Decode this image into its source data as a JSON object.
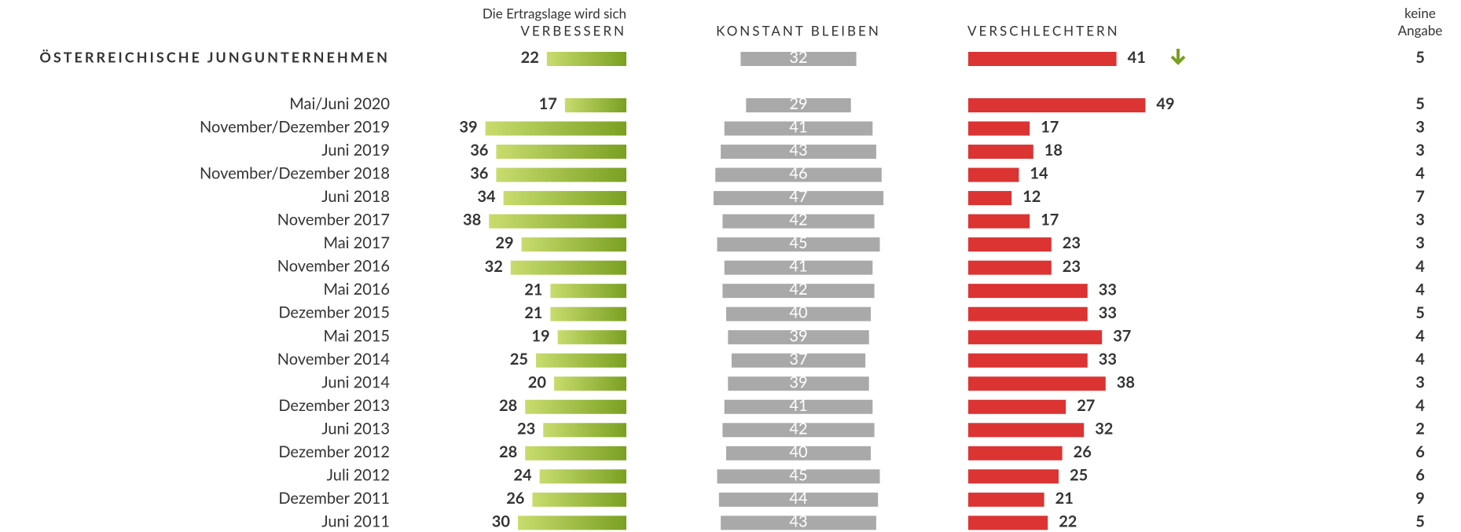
{
  "chart_data": {
    "type": "diverging_bar",
    "subtitle": "Die Ertragslage wird sich",
    "categories": [
      "ÖSTERREICHISCHE JUNGUNTERNEHMEN",
      "Mai/Juni 2020",
      "November/Dezember 2019",
      "Juni 2019",
      "November/Dezember 2018",
      "Juni 2018",
      "November 2017",
      "Mai 2017",
      "November 2016",
      "Mai 2016",
      "Dezember 2015",
      "Mai 2015",
      "November 2014",
      "Juni 2014",
      "Dezember 2013",
      "Juni 2013",
      "Dezember 2012",
      "Juli 2012",
      "Dezember 2011",
      "Juni 2011"
    ],
    "series": [
      {
        "name": "VERBESSERN",
        "color": [
          "#c8dc6e",
          "#7aa022"
        ],
        "values": [
          22,
          17,
          39,
          36,
          36,
          34,
          38,
          29,
          32,
          21,
          21,
          19,
          25,
          20,
          28,
          23,
          28,
          24,
          26,
          30
        ]
      },
      {
        "name": "KONSTANT BLEIBEN",
        "color": "#a9a9a9",
        "values": [
          32,
          29,
          41,
          43,
          46,
          47,
          42,
          45,
          41,
          42,
          40,
          39,
          37,
          39,
          41,
          42,
          40,
          45,
          44,
          43
        ]
      },
      {
        "name": "VERSCHLECHTERN",
        "color": "#dc3333",
        "values": [
          41,
          49,
          17,
          18,
          14,
          12,
          17,
          23,
          23,
          33,
          33,
          37,
          33,
          38,
          27,
          32,
          26,
          25,
          21,
          22
        ]
      },
      {
        "name": "keine Angabe",
        "values": [
          5,
          5,
          3,
          3,
          4,
          7,
          3,
          3,
          4,
          4,
          5,
          4,
          4,
          3,
          4,
          2,
          6,
          6,
          9,
          5
        ]
      }
    ]
  }
}
